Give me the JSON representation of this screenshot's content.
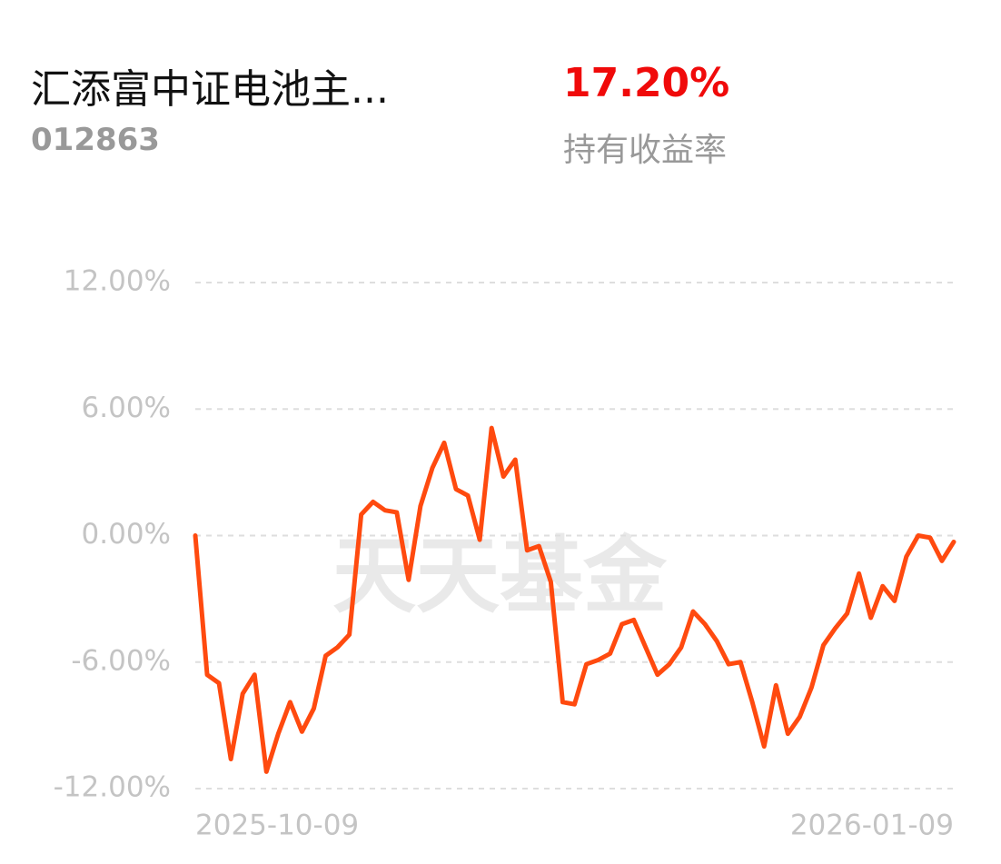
{
  "header": {
    "title": "汇添富中证电池主...",
    "code": "012863",
    "return_value": "17.20%",
    "return_label": "持有收益率"
  },
  "chart_data": {
    "type": "line",
    "watermark": "天天基金",
    "categories": [
      "2025-10-09",
      null,
      null,
      null,
      null,
      null,
      null,
      null,
      null,
      null,
      null,
      null,
      null,
      null,
      null,
      null,
      null,
      null,
      null,
      null,
      null,
      null,
      null,
      null,
      null,
      null,
      null,
      null,
      null,
      null,
      null,
      null,
      null,
      null,
      null,
      null,
      null,
      null,
      null,
      null,
      null,
      null,
      null,
      null,
      null,
      null,
      null,
      null,
      null,
      null,
      null,
      null,
      null,
      null,
      null,
      null,
      null,
      null,
      null,
      null,
      null,
      null,
      null,
      null,
      "2026-01-09"
    ],
    "series": [
      {
        "name": "持有收益率",
        "color": "#ff4a0f",
        "values": [
          0,
          -6.6,
          -7.0,
          -10.6,
          -7.5,
          -6.6,
          -11.2,
          -9.4,
          -7.9,
          -9.3,
          -8.2,
          -5.7,
          -5.3,
          -4.7,
          1.0,
          1.6,
          1.2,
          1.1,
          -2.1,
          1.4,
          3.2,
          4.4,
          2.2,
          1.9,
          -0.2,
          5.1,
          2.8,
          3.6,
          -0.7,
          -0.5,
          -2.2,
          -7.9,
          -8.0,
          -6.1,
          -5.9,
          -5.6,
          -4.2,
          -4.0,
          -5.3,
          -6.6,
          -6.1,
          -5.3,
          -3.6,
          -4.2,
          -5.0,
          -6.1,
          -6.0,
          -7.9,
          -10.0,
          -7.1,
          -9.4,
          -8.6,
          -7.2,
          -5.2,
          -4.4,
          -3.7,
          -1.8,
          -3.9,
          -2.4,
          -3.1,
          -1.0,
          0.0,
          -0.1,
          -1.2,
          -0.3
        ]
      }
    ],
    "ylim": [
      -12,
      12
    ],
    "yticks": [
      {
        "value": -12,
        "label": "-12.00%"
      },
      {
        "value": -6,
        "label": "-6.00%"
      },
      {
        "value": 0,
        "label": "0.00%"
      },
      {
        "value": 6,
        "label": "6.00%"
      },
      {
        "value": 12,
        "label": "12.00%"
      }
    ],
    "grid": true
  }
}
